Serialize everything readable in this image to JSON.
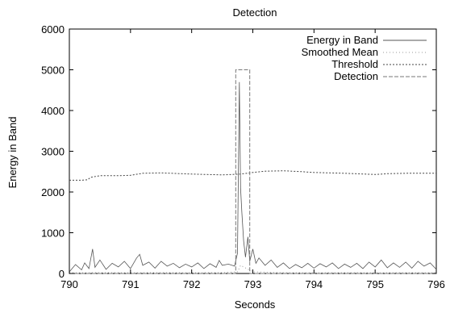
{
  "chart_data": {
    "type": "line",
    "title": "Detection",
    "xlabel": "Seconds",
    "ylabel": "Energy in Band",
    "xlim": [
      790,
      796
    ],
    "ylim": [
      0,
      6000
    ],
    "xticks": [
      790,
      791,
      792,
      793,
      794,
      795,
      796
    ],
    "yticks": [
      0,
      1000,
      2000,
      3000,
      4000,
      5000,
      6000
    ],
    "grid": false,
    "legend_position": "top-right",
    "legend": [
      "Energy in Band",
      "Smoothed Mean",
      "Threshold",
      "Detection"
    ],
    "series": [
      {
        "name": "Energy in Band",
        "style": "solid",
        "color": "#555555",
        "points": [
          [
            790.0,
            40
          ],
          [
            790.1,
            220
          ],
          [
            790.2,
            90
          ],
          [
            790.25,
            260
          ],
          [
            790.32,
            120
          ],
          [
            790.38,
            600
          ],
          [
            790.42,
            150
          ],
          [
            790.5,
            330
          ],
          [
            790.6,
            100
          ],
          [
            790.7,
            250
          ],
          [
            790.8,
            160
          ],
          [
            790.9,
            300
          ],
          [
            791.0,
            120
          ],
          [
            791.1,
            380
          ],
          [
            791.15,
            470
          ],
          [
            791.2,
            200
          ],
          [
            791.3,
            280
          ],
          [
            791.4,
            130
          ],
          [
            791.5,
            300
          ],
          [
            791.6,
            180
          ],
          [
            791.7,
            250
          ],
          [
            791.8,
            140
          ],
          [
            791.9,
            230
          ],
          [
            792.0,
            160
          ],
          [
            792.1,
            260
          ],
          [
            792.2,
            120
          ],
          [
            792.3,
            240
          ],
          [
            792.4,
            150
          ],
          [
            792.45,
            320
          ],
          [
            792.5,
            200
          ],
          [
            792.6,
            230
          ],
          [
            792.7,
            180
          ],
          [
            792.75,
            500
          ],
          [
            792.78,
            4700
          ],
          [
            792.8,
            2100
          ],
          [
            792.82,
            1500
          ],
          [
            792.85,
            800
          ],
          [
            792.88,
            400
          ],
          [
            792.92,
            900
          ],
          [
            792.95,
            300
          ],
          [
            793.0,
            600
          ],
          [
            793.05,
            250
          ],
          [
            793.1,
            380
          ],
          [
            793.2,
            200
          ],
          [
            793.3,
            330
          ],
          [
            793.4,
            150
          ],
          [
            793.5,
            260
          ],
          [
            793.6,
            120
          ],
          [
            793.7,
            220
          ],
          [
            793.8,
            140
          ],
          [
            793.9,
            250
          ],
          [
            794.0,
            130
          ],
          [
            794.1,
            240
          ],
          [
            794.2,
            160
          ],
          [
            794.3,
            260
          ],
          [
            794.4,
            120
          ],
          [
            794.5,
            230
          ],
          [
            794.6,
            150
          ],
          [
            794.7,
            250
          ],
          [
            794.8,
            120
          ],
          [
            794.9,
            280
          ],
          [
            795.0,
            160
          ],
          [
            795.1,
            330
          ],
          [
            795.2,
            140
          ],
          [
            795.3,
            260
          ],
          [
            795.4,
            150
          ],
          [
            795.5,
            280
          ],
          [
            795.6,
            130
          ],
          [
            795.7,
            300
          ],
          [
            795.8,
            180
          ],
          [
            795.9,
            260
          ],
          [
            796.0,
            100
          ]
        ]
      },
      {
        "name": "Smoothed Mean",
        "style": "dotted-fine",
        "color": "#999999",
        "points": [
          [
            790.0,
            15
          ],
          [
            790.5,
            20
          ],
          [
            791.0,
            18
          ],
          [
            791.5,
            20
          ],
          [
            792.0,
            18
          ],
          [
            792.5,
            20
          ],
          [
            792.75,
            40
          ],
          [
            792.8,
            200
          ],
          [
            792.9,
            120
          ],
          [
            793.0,
            40
          ],
          [
            793.5,
            20
          ],
          [
            794.0,
            18
          ],
          [
            794.5,
            20
          ],
          [
            795.0,
            18
          ],
          [
            795.5,
            20
          ],
          [
            796.0,
            18
          ]
        ]
      },
      {
        "name": "Threshold",
        "style": "dotted",
        "color": "#444444",
        "points": [
          [
            790.0,
            2290
          ],
          [
            790.2,
            2290
          ],
          [
            790.3,
            2300
          ],
          [
            790.35,
            2360
          ],
          [
            790.5,
            2400
          ],
          [
            790.8,
            2400
          ],
          [
            791.0,
            2410
          ],
          [
            791.2,
            2460
          ],
          [
            791.5,
            2470
          ],
          [
            792.0,
            2440
          ],
          [
            792.5,
            2420
          ],
          [
            792.8,
            2440
          ],
          [
            793.0,
            2480
          ],
          [
            793.2,
            2510
          ],
          [
            793.5,
            2520
          ],
          [
            793.8,
            2500
          ],
          [
            794.0,
            2480
          ],
          [
            794.5,
            2460
          ],
          [
            795.0,
            2430
          ],
          [
            795.2,
            2450
          ],
          [
            795.5,
            2460
          ],
          [
            796.0,
            2460
          ]
        ]
      },
      {
        "name": "Detection",
        "style": "dashed",
        "color": "#777777",
        "points": [
          [
            790.0,
            0
          ],
          [
            792.72,
            0
          ],
          [
            792.72,
            5000
          ],
          [
            792.95,
            5000
          ],
          [
            792.95,
            0
          ],
          [
            796.0,
            0
          ]
        ]
      }
    ]
  }
}
